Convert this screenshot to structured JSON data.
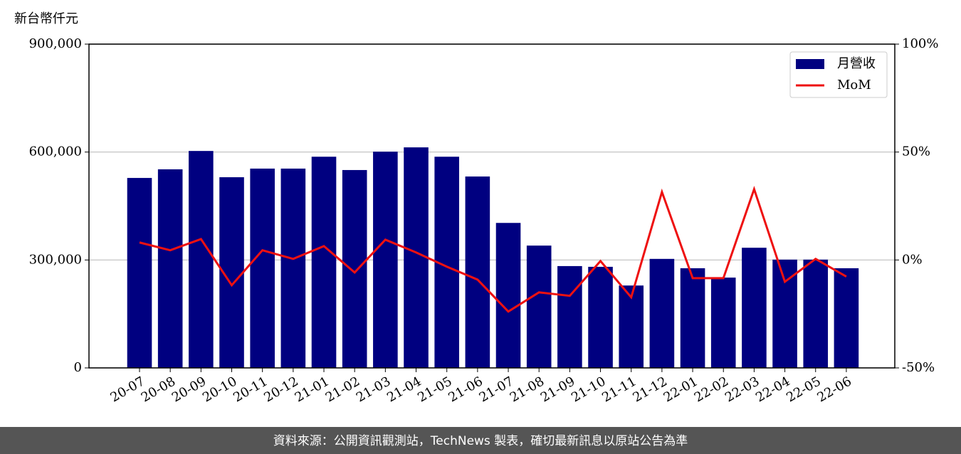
{
  "chart_data": {
    "type": "bar-line",
    "y_label": "新台幣仟元",
    "footer": "資料來源：公開資訊觀測站，TechNews 製表，確切最新訊息以原站公告為準",
    "categories": [
      "20-07",
      "20-08",
      "20-09",
      "20-10",
      "20-11",
      "20-12",
      "21-01",
      "21-02",
      "21-03",
      "21-04",
      "21-05",
      "21-06",
      "21-07",
      "21-08",
      "21-09",
      "21-10",
      "21-11",
      "21-12",
      "22-01",
      "22-02",
      "22-03",
      "22-04",
      "22-05",
      "22-06"
    ],
    "series": [
      {
        "name": "月營收",
        "type": "bar",
        "color": "#000080",
        "axis": "y",
        "values": [
          528000,
          552000,
          603000,
          530000,
          554000,
          554000,
          587000,
          550000,
          601000,
          613000,
          587000,
          532000,
          403000,
          340000,
          283000,
          281000,
          229000,
          303000,
          277000,
          251000,
          334000,
          301000,
          301000,
          277000
        ]
      },
      {
        "name": "MoM",
        "type": "line",
        "color": "#ee1111",
        "axis": "y2",
        "values": [
          8.1,
          4.5,
          9.7,
          -11.7,
          4.5,
          0.5,
          6.4,
          -5.8,
          9.4,
          3.5,
          -3.1,
          -9.1,
          -23.9,
          -15.0,
          -16.6,
          -0.5,
          -17.3,
          31.5,
          -8.4,
          -8.4,
          32.8,
          -10.1,
          0.5,
          -7.7
        ]
      }
    ],
    "ylim": [
      0,
      900000
    ],
    "yticks": [
      0,
      {
        "value": 300000,
        "label": "300,000"
      },
      {
        "value": 600000,
        "label": "600,000"
      },
      {
        "value": 900000,
        "label": "900,000"
      }
    ],
    "y2lim": [
      -50,
      100
    ],
    "y2ticks": [
      {
        "value": -50,
        "label": "-50%"
      },
      {
        "value": 0,
        "label": "0%"
      },
      {
        "value": 50,
        "label": "50%"
      },
      {
        "value": 100,
        "label": "100%"
      }
    ],
    "grid": true,
    "legend": "upper-right"
  }
}
